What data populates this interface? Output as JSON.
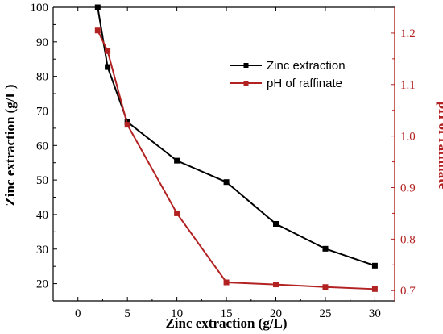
{
  "chart_data": {
    "type": "line",
    "xlabel": "Zinc extraction (g/L)",
    "ylabel": "Zinc extraction (g/L)",
    "y2label": "pH of raffinate",
    "xlim": [
      -2.5,
      32
    ],
    "ylim": [
      15,
      100
    ],
    "y2lim": [
      0.68,
      1.25
    ],
    "xticks": [
      "0",
      "5",
      "10",
      "15",
      "20",
      "25",
      "30"
    ],
    "xtick_values": [
      0,
      5,
      10,
      15,
      20,
      25,
      30
    ],
    "yticks": [
      "20",
      "30",
      "40",
      "50",
      "60",
      "70",
      "80",
      "90",
      "100"
    ],
    "ytick_values": [
      20,
      30,
      40,
      50,
      60,
      70,
      80,
      90,
      100
    ],
    "y2ticks": [
      "0.7",
      "0.8",
      "0.9",
      "1.0",
      "1.1",
      "1.2"
    ],
    "y2tick_values": [
      0.7,
      0.8,
      0.9,
      1.0,
      1.1,
      1.2
    ],
    "legend_position": "upper-right",
    "colors": {
      "zinc": "#000000",
      "ph": "#b22222",
      "right_axis": "#b22222"
    },
    "series": [
      {
        "name": "Zinc extraction",
        "axis": "left",
        "marker": "square",
        "x": [
          2,
          3,
          5,
          10,
          15,
          20,
          25,
          30
        ],
        "y": [
          100,
          82.7,
          66.8,
          55.6,
          49.4,
          37.3,
          30.1,
          25.2
        ]
      },
      {
        "name": "pH of raffinate",
        "axis": "right",
        "marker": "square",
        "x": [
          2,
          3,
          5,
          10,
          15,
          20,
          25,
          30
        ],
        "y": [
          1.205,
          1.165,
          1.022,
          0.85,
          0.716,
          0.712,
          0.707,
          0.703
        ]
      }
    ]
  }
}
